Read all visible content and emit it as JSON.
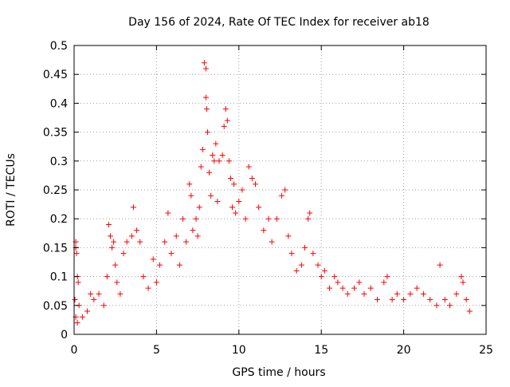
{
  "chart_data": {
    "type": "scatter",
    "title": "Day 156 of 2024, Rate Of TEC Index for receiver ab18",
    "xlabel": "GPS time / hours",
    "ylabel": "ROTI / TECUs",
    "xlim": [
      0,
      25
    ],
    "ylim": [
      0,
      0.5
    ],
    "xticks": [
      0,
      5,
      10,
      15,
      20,
      25
    ],
    "xtick_labels": [
      "0",
      "5",
      "10",
      "15",
      "20",
      "25"
    ],
    "yticks": [
      0,
      0.05,
      0.1,
      0.15,
      0.2,
      0.25,
      0.3,
      0.35,
      0.4,
      0.45,
      0.5
    ],
    "ytick_labels": [
      "0",
      "0.05",
      "0.1",
      "0.15",
      "0.2",
      "0.25",
      "0.3",
      "0.35",
      "0.4",
      "0.45",
      "0.5"
    ],
    "grid": true,
    "marker": "+",
    "color": "#ff0000",
    "points": [
      [
        0.1,
        0.16
      ],
      [
        0.1,
        0.15
      ],
      [
        0.15,
        0.14
      ],
      [
        0.2,
        0.1
      ],
      [
        0.25,
        0.09
      ],
      [
        0.05,
        0.06
      ],
      [
        0.1,
        0.03
      ],
      [
        0.2,
        0.02
      ],
      [
        0.3,
        0.05
      ],
      [
        0.5,
        0.03
      ],
      [
        0.8,
        0.04
      ],
      [
        1.0,
        0.07
      ],
      [
        1.2,
        0.06
      ],
      [
        1.5,
        0.07
      ],
      [
        1.8,
        0.05
      ],
      [
        2.0,
        0.1
      ],
      [
        2.1,
        0.19
      ],
      [
        2.2,
        0.17
      ],
      [
        2.3,
        0.15
      ],
      [
        2.4,
        0.16
      ],
      [
        2.5,
        0.12
      ],
      [
        2.6,
        0.09
      ],
      [
        2.8,
        0.07
      ],
      [
        3.0,
        0.14
      ],
      [
        3.2,
        0.16
      ],
      [
        3.5,
        0.17
      ],
      [
        3.6,
        0.22
      ],
      [
        3.8,
        0.18
      ],
      [
        4.0,
        0.16
      ],
      [
        4.2,
        0.1
      ],
      [
        4.5,
        0.08
      ],
      [
        4.8,
        0.13
      ],
      [
        5.0,
        0.09
      ],
      [
        5.2,
        0.12
      ],
      [
        5.5,
        0.16
      ],
      [
        5.7,
        0.21
      ],
      [
        5.9,
        0.14
      ],
      [
        6.2,
        0.17
      ],
      [
        6.4,
        0.12
      ],
      [
        6.6,
        0.2
      ],
      [
        6.8,
        0.16
      ],
      [
        7.0,
        0.26
      ],
      [
        7.1,
        0.24
      ],
      [
        7.2,
        0.18
      ],
      [
        7.4,
        0.2
      ],
      [
        7.5,
        0.17
      ],
      [
        7.6,
        0.22
      ],
      [
        7.7,
        0.29
      ],
      [
        7.8,
        0.32
      ],
      [
        7.9,
        0.47
      ],
      [
        8.0,
        0.46
      ],
      [
        8.0,
        0.41
      ],
      [
        8.05,
        0.39
      ],
      [
        8.1,
        0.35
      ],
      [
        8.2,
        0.28
      ],
      [
        8.3,
        0.24
      ],
      [
        8.4,
        0.31
      ],
      [
        8.5,
        0.3
      ],
      [
        8.6,
        0.33
      ],
      [
        8.7,
        0.23
      ],
      [
        8.8,
        0.3
      ],
      [
        9.0,
        0.31
      ],
      [
        9.1,
        0.36
      ],
      [
        9.2,
        0.39
      ],
      [
        9.3,
        0.37
      ],
      [
        9.4,
        0.3
      ],
      [
        9.5,
        0.27
      ],
      [
        9.6,
        0.22
      ],
      [
        9.7,
        0.26
      ],
      [
        9.8,
        0.21
      ],
      [
        10.0,
        0.23
      ],
      [
        10.2,
        0.25
      ],
      [
        10.4,
        0.2
      ],
      [
        10.6,
        0.29
      ],
      [
        10.8,
        0.27
      ],
      [
        11.0,
        0.26
      ],
      [
        11.2,
        0.22
      ],
      [
        11.5,
        0.18
      ],
      [
        11.8,
        0.2
      ],
      [
        12.0,
        0.16
      ],
      [
        12.3,
        0.2
      ],
      [
        12.6,
        0.24
      ],
      [
        12.8,
        0.25
      ],
      [
        13.0,
        0.17
      ],
      [
        13.2,
        0.14
      ],
      [
        13.5,
        0.11
      ],
      [
        13.8,
        0.12
      ],
      [
        14.0,
        0.15
      ],
      [
        14.2,
        0.2
      ],
      [
        14.3,
        0.21
      ],
      [
        14.5,
        0.14
      ],
      [
        14.8,
        0.12
      ],
      [
        15.0,
        0.1
      ],
      [
        15.2,
        0.11
      ],
      [
        15.5,
        0.08
      ],
      [
        15.8,
        0.1
      ],
      [
        16.0,
        0.09
      ],
      [
        16.3,
        0.08
      ],
      [
        16.6,
        0.07
      ],
      [
        17.0,
        0.08
      ],
      [
        17.3,
        0.09
      ],
      [
        17.6,
        0.07
      ],
      [
        18.0,
        0.08
      ],
      [
        18.4,
        0.06
      ],
      [
        18.8,
        0.09
      ],
      [
        19.0,
        0.1
      ],
      [
        19.3,
        0.06
      ],
      [
        19.6,
        0.07
      ],
      [
        20.0,
        0.06
      ],
      [
        20.4,
        0.07
      ],
      [
        20.8,
        0.08
      ],
      [
        21.2,
        0.07
      ],
      [
        21.6,
        0.06
      ],
      [
        22.0,
        0.05
      ],
      [
        22.2,
        0.12
      ],
      [
        22.5,
        0.06
      ],
      [
        22.8,
        0.05
      ],
      [
        23.2,
        0.07
      ],
      [
        23.5,
        0.1
      ],
      [
        23.6,
        0.09
      ],
      [
        23.8,
        0.06
      ],
      [
        24.0,
        0.04
      ]
    ]
  }
}
